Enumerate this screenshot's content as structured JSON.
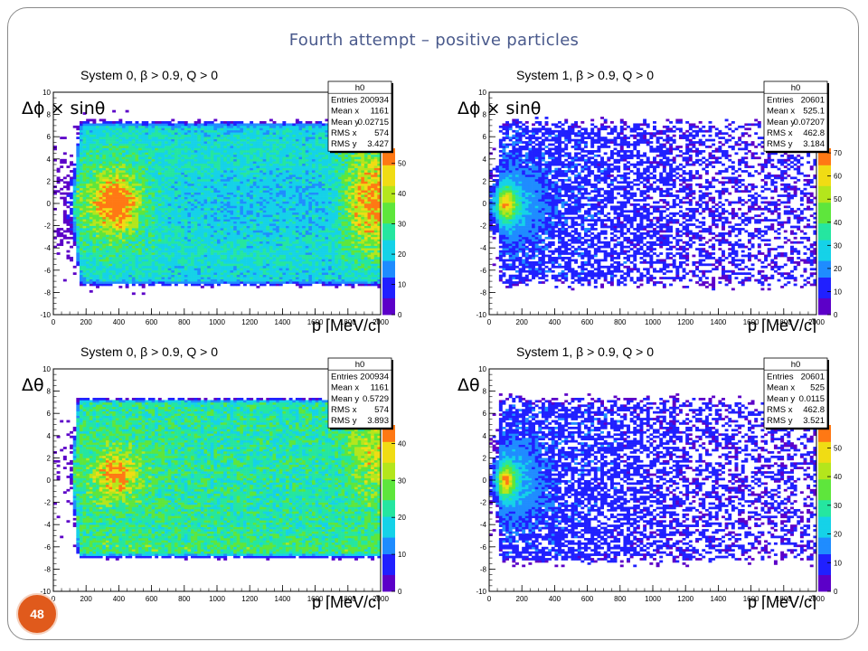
{
  "slide": {
    "title": "Fourth attempt – positive particles",
    "page_number": "48"
  },
  "chart_data": [
    {
      "type": "heatmap",
      "title": "System 0, β > 0.9, Q > 0",
      "xlabel": "p [MeV/c]",
      "ylabel": "Δϕ × sinθ",
      "xlim": [
        0,
        2000
      ],
      "ylim": [
        -10,
        10
      ],
      "x_ticks": [
        0,
        200,
        400,
        600,
        800,
        1000,
        1200,
        1400,
        1600,
        1800,
        2000
      ],
      "y_ticks": [
        -10,
        -8,
        -6,
        -4,
        -2,
        0,
        2,
        4,
        6,
        8,
        10
      ],
      "z_ticks": [
        0,
        10,
        20,
        30,
        40,
        50
      ],
      "z_max": 55,
      "colormap": [
        "#5c00c8",
        "#2020ff",
        "#1f8cff",
        "#15d2e8",
        "#25e6a0",
        "#5ee63c",
        "#b4e61c",
        "#f0dc14",
        "#ff7814",
        "#d21414"
      ],
      "stats": {
        "name": "h0",
        "Entries": "200934",
        "Mean x": "1161",
        "Mean y": "0.02715",
        "RMS x": "574",
        "RMS y": "3.427"
      },
      "distribution": "band |y|<7 from p≈100 to 2000; hot spot near p≈380,y≈0; dense edge near p≈1900"
    },
    {
      "type": "heatmap",
      "title": "System 1, β > 0.9, Q > 0",
      "xlabel": "p [MeV/c]",
      "ylabel": "Δϕ × sinθ",
      "xlim": [
        0,
        2000
      ],
      "ylim": [
        -10,
        10
      ],
      "x_ticks": [
        0,
        200,
        400,
        600,
        800,
        1000,
        1200,
        1400,
        1600,
        1800,
        2000
      ],
      "y_ticks": [
        -10,
        -8,
        -6,
        -4,
        -2,
        0,
        2,
        4,
        6,
        8,
        10
      ],
      "z_ticks": [
        0,
        10,
        20,
        30,
        40,
        50,
        60,
        70
      ],
      "z_max": 72,
      "colormap": [
        "#5c00c8",
        "#2020ff",
        "#1f8cff",
        "#15d2e8",
        "#25e6a0",
        "#5ee63c",
        "#b4e61c",
        "#f0dc14",
        "#ff7814",
        "#d21414"
      ],
      "stats": {
        "name": "h0",
        "Entries": "20601",
        "Mean x": "525.1",
        "Mean y": "0.07207",
        "RMS x": "462.8",
        "RMS y": "3.184"
      },
      "distribution": "sharp cluster at p≈100,y≈0; sparse scatter |y|<7 thinning toward 2000"
    },
    {
      "type": "heatmap",
      "title": "System 0, β > 0.9, Q > 0",
      "xlabel": "p [MeV/c]",
      "ylabel": "Δθ",
      "xlim": [
        0,
        2000
      ],
      "ylim": [
        -10,
        10
      ],
      "x_ticks": [
        0,
        200,
        400,
        600,
        800,
        1000,
        1200,
        1400,
        1600,
        1800,
        2000
      ],
      "y_ticks": [
        -10,
        -8,
        -6,
        -4,
        -2,
        0,
        2,
        4,
        6,
        8,
        10
      ],
      "z_ticks": [
        0,
        10,
        20,
        30,
        40
      ],
      "z_max": 45,
      "colormap": [
        "#5c00c8",
        "#2020ff",
        "#1f8cff",
        "#15d2e8",
        "#25e6a0",
        "#5ee63c",
        "#b4e61c",
        "#f0dc14",
        "#ff7814",
        "#d21414"
      ],
      "stats": {
        "name": "h0",
        "Entries": "200934",
        "Mean x": "1161",
        "Mean y": "0.5729",
        "RMS x": "574",
        "RMS y": "3.893"
      },
      "distribution": "flat band -7<y<7.5 from p≈100 to 2000; hot spot near p≈380,y≈0.5"
    },
    {
      "type": "heatmap",
      "title": "System 1, β > 0.9, Q > 0",
      "xlabel": "p [MeV/c]",
      "ylabel": "Δθ",
      "xlim": [
        0,
        2000
      ],
      "ylim": [
        -10,
        10
      ],
      "x_ticks": [
        0,
        200,
        400,
        600,
        800,
        1000,
        1200,
        1400,
        1600,
        1800,
        2000
      ],
      "y_ticks": [
        -10,
        -8,
        -6,
        -4,
        -2,
        0,
        2,
        4,
        6,
        8,
        10
      ],
      "z_ticks": [
        0,
        10,
        20,
        30,
        40,
        50
      ],
      "z_max": 58,
      "colormap": [
        "#5c00c8",
        "#2020ff",
        "#1f8cff",
        "#15d2e8",
        "#25e6a0",
        "#5ee63c",
        "#b4e61c",
        "#f0dc14",
        "#ff7814",
        "#d21414"
      ],
      "stats": {
        "name": "h0",
        "Entries": "20601",
        "Mean x": "525",
        "Mean y": "0.0115",
        "RMS x": "462.8",
        "RMS y": "3.521"
      },
      "distribution": "sharp cluster at p≈100,y≈0; sparse scatter |y|<7 thinning toward 2000"
    }
  ]
}
